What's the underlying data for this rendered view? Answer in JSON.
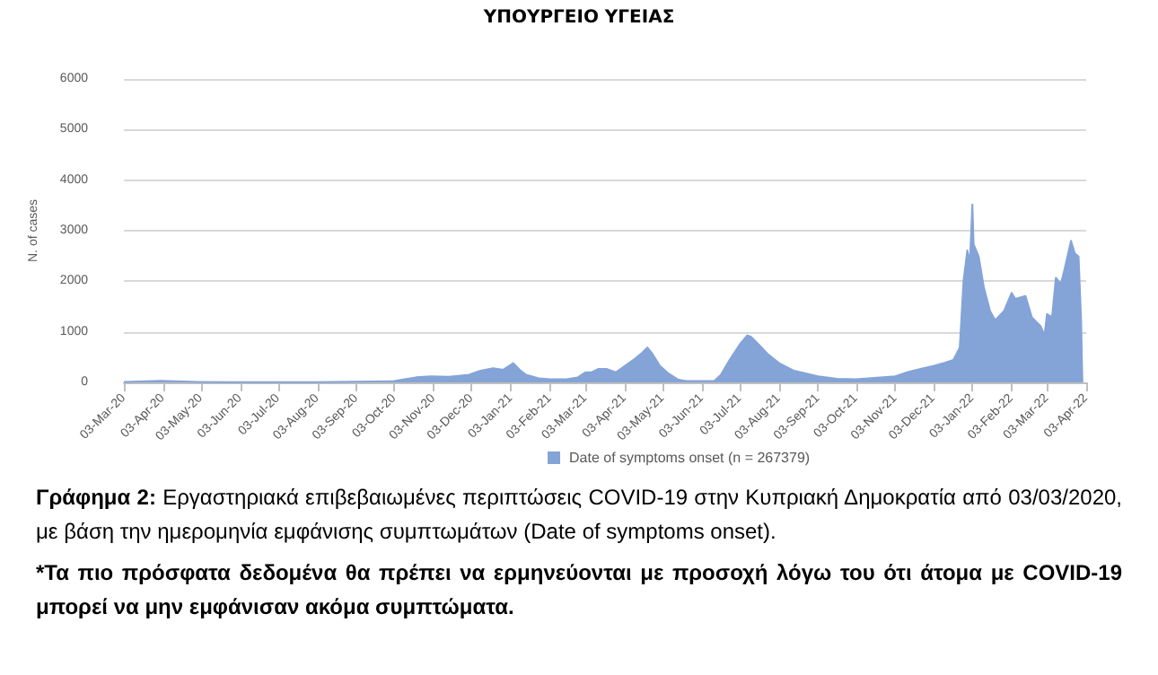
{
  "chart_data": {
    "type": "area",
    "title": "ΥΠΟΥΡΓΕΙΟ ΥΓΕΙΑΣ",
    "ylabel": "N. of cases",
    "x": [
      "2020-03-03",
      "2020-04-01",
      "2020-05-01",
      "2020-06-01",
      "2020-08-01",
      "2020-10-01",
      "2020-10-10",
      "2020-10-20",
      "2020-11-01",
      "2020-11-15",
      "2020-12-01",
      "2020-12-10",
      "2020-12-20",
      "2020-12-28",
      "2021-01-03",
      "2021-01-05",
      "2021-01-10",
      "2021-01-15",
      "2021-01-25",
      "2021-02-03",
      "2021-02-15",
      "2021-02-25",
      "2021-03-03",
      "2021-03-08",
      "2021-03-13",
      "2021-03-20",
      "2021-03-27",
      "2021-04-03",
      "2021-04-10",
      "2021-04-17",
      "2021-04-21",
      "2021-04-25",
      "2021-05-01",
      "2021-05-08",
      "2021-05-15",
      "2021-05-22",
      "2021-06-03",
      "2021-06-13",
      "2021-06-18",
      "2021-06-25",
      "2021-07-03",
      "2021-07-09",
      "2021-07-12",
      "2021-07-18",
      "2021-07-25",
      "2021-08-03",
      "2021-08-15",
      "2021-09-03",
      "2021-09-18",
      "2021-10-03",
      "2021-10-15",
      "2021-11-03",
      "2021-11-13",
      "2021-11-23",
      "2021-12-03",
      "2021-12-12",
      "2021-12-19",
      "2021-12-24",
      "2021-12-27",
      "2021-12-30",
      "2022-01-01",
      "2022-01-03",
      "2022-01-04",
      "2022-01-08",
      "2022-01-12",
      "2022-01-17",
      "2022-01-21",
      "2022-01-28",
      "2022-02-03",
      "2022-02-06",
      "2022-02-14",
      "2022-02-19",
      "2022-02-26",
      "2022-03-01",
      "2022-03-03",
      "2022-03-07",
      "2022-03-10",
      "2022-03-14",
      "2022-03-17",
      "2022-03-22",
      "2022-03-25",
      "2022-03-28",
      "2022-03-30",
      "2022-03-31"
    ],
    "series": [
      {
        "name": "Date of symptoms onset (n = 267379)",
        "color": "#84a4d8",
        "values": [
          10,
          30,
          10,
          5,
          5,
          20,
          60,
          100,
          120,
          110,
          150,
          230,
          280,
          250,
          350,
          380,
          250,
          150,
          80,
          60,
          60,
          100,
          200,
          200,
          265,
          265,
          200,
          325,
          445,
          590,
          690,
          565,
          325,
          170,
          60,
          25,
          25,
          30,
          145,
          445,
          750,
          930,
          900,
          750,
          565,
          385,
          230,
          120,
          70,
          60,
          85,
          120,
          205,
          265,
          325,
          385,
          445,
          690,
          2010,
          2610,
          2370,
          3520,
          2730,
          2490,
          1890,
          1410,
          1230,
          1410,
          1770,
          1650,
          1710,
          1290,
          1110,
          930,
          1350,
          1290,
          2070,
          1950,
          2250,
          2800,
          2550,
          2490,
          1230,
          0
        ]
      }
    ],
    "xlim": [
      "2020-03-03",
      "2022-04-03"
    ],
    "xticks": [
      {
        "value": "2020-03-03",
        "label": "03-Mar-20"
      },
      {
        "value": "2020-04-03",
        "label": "03-Apr-20"
      },
      {
        "value": "2020-05-03",
        "label": "03-May-20"
      },
      {
        "value": "2020-06-03",
        "label": "03-Jun-20"
      },
      {
        "value": "2020-07-03",
        "label": "03-Jul-20"
      },
      {
        "value": "2020-08-03",
        "label": "03-Aug-20"
      },
      {
        "value": "2020-09-03",
        "label": "03-Sep-20"
      },
      {
        "value": "2020-10-03",
        "label": "03-Oct-20"
      },
      {
        "value": "2020-11-03",
        "label": "03-Nov-20"
      },
      {
        "value": "2020-12-03",
        "label": "03-Dec-20"
      },
      {
        "value": "2021-01-03",
        "label": "03-Jan-21"
      },
      {
        "value": "2021-02-03",
        "label": "03-Feb-21"
      },
      {
        "value": "2021-03-03",
        "label": "03-Mar-21"
      },
      {
        "value": "2021-04-03",
        "label": "03-Apr-21"
      },
      {
        "value": "2021-05-03",
        "label": "03-May-21"
      },
      {
        "value": "2021-06-03",
        "label": "03-Jun-21"
      },
      {
        "value": "2021-07-03",
        "label": "03-Jul-21"
      },
      {
        "value": "2021-08-03",
        "label": "03-Aug-21"
      },
      {
        "value": "2021-09-03",
        "label": "03-Sep-21"
      },
      {
        "value": "2021-10-03",
        "label": "03-Oct-21"
      },
      {
        "value": "2021-11-03",
        "label": "03-Nov-21"
      },
      {
        "value": "2021-12-03",
        "label": "03-Dec-21"
      },
      {
        "value": "2022-01-03",
        "label": "03-Jan-22"
      },
      {
        "value": "2022-02-03",
        "label": "03-Feb-22"
      },
      {
        "value": "2022-03-03",
        "label": "03-Mar-22"
      },
      {
        "value": "2022-04-03",
        "label": "03-Apr-22"
      }
    ],
    "ylim": [
      0,
      6000
    ],
    "yticks": [
      0,
      1000,
      2000,
      3000,
      4000,
      5000,
      6000
    ],
    "grid": "y",
    "legend": "bottom",
    "annotations": [
      "Γράφημα 2: Εργαστηριακά επιβεβαιωμένες περιπτώσεις COVID-19 στην Κυπριακή Δημοκρατία από 03/03/2020, με βάση την ημερομηνία εμφάνισης συμπτωμάτων (Date of symptoms onset).",
      "*Τα πιο πρόσφατα δεδομένα θα πρέπει να ερμηνεύονται με προσοχή λόγω του ότι άτομα με COVID-19 μπορεί να μην εμφάνισαν ακόμα συμπτώματα."
    ]
  }
}
